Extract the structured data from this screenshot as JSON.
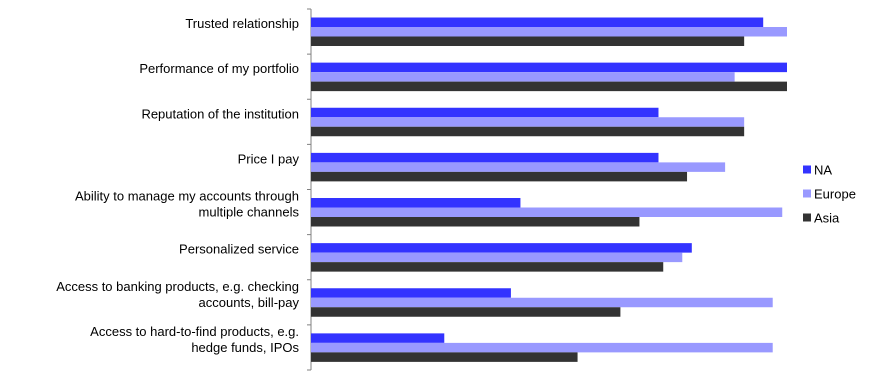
{
  "chart_data": {
    "type": "bar",
    "orientation": "horizontal",
    "categories": [
      "Trusted relationship",
      "Performance of my portfolio",
      "Reputation of the institution",
      "Price I pay",
      "Ability to manage my accounts through multiple channels",
      "Personalized service",
      "Access to banking products, e.g. checking accounts, bill-pay",
      "Access to hard-to-find products, e.g. hedge funds, IPOs"
    ],
    "category_lines": [
      [
        "Trusted relationship"
      ],
      [
        "Performance of my portfolio"
      ],
      [
        "Reputation of the institution"
      ],
      [
        "Price I pay"
      ],
      [
        "Ability to manage my accounts through",
        "multiple channels"
      ],
      [
        "Personalized service"
      ],
      [
        "Access to banking products, e.g. checking",
        "accounts, bill-pay"
      ],
      [
        "Access to hard-to-find products, e.g.",
        "hedge funds, IPOs"
      ]
    ],
    "series": [
      {
        "name": "NA",
        "color": "#3333ff",
        "values": [
          95,
          100,
          73,
          73,
          44,
          80,
          42,
          28
        ]
      },
      {
        "name": "Europe",
        "color": "#9999ff",
        "values": [
          100,
          89,
          91,
          87,
          99,
          78,
          97,
          97
        ]
      },
      {
        "name": "Asia",
        "color": "#333333",
        "values": [
          91,
          100,
          91,
          79,
          69,
          74,
          65,
          56
        ]
      }
    ],
    "xlim": [
      0,
      100
    ],
    "grid": false,
    "legend": "right"
  }
}
